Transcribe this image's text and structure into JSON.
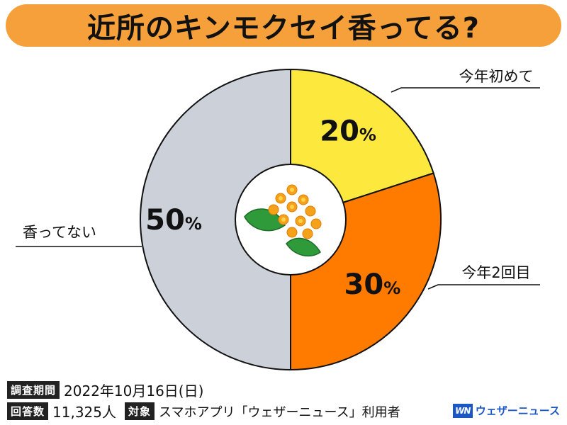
{
  "title": "近所のキンモクセイ香ってる?",
  "chart_data": {
    "type": "pie",
    "slices": [
      {
        "label": "今年初めて",
        "value": 20,
        "display": "20",
        "color": "#fde93d"
      },
      {
        "label": "今年2回目",
        "value": 30,
        "display": "30",
        "color": "#ff7b00"
      },
      {
        "label": "香ってない",
        "value": 50,
        "display": "50",
        "color": "#cbd0d9"
      }
    ],
    "unit": "%",
    "donut_center": "osmanthus-flower-icon"
  },
  "footer": {
    "period_tag": "調査期間",
    "period_value": "2022年10月16日(日)",
    "count_tag": "回答数",
    "count_value": "11,325人",
    "target_tag": "対象",
    "target_value": "スマホアプリ「ウェザーニュース」利用者"
  },
  "brand": {
    "icon_text": "WN",
    "name": "ウェザーニュース"
  }
}
